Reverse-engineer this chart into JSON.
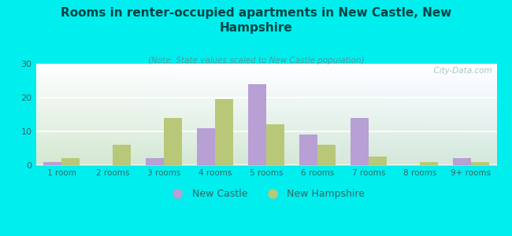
{
  "title": "Rooms in renter-occupied apartments in New Castle, New\nHampshire",
  "subtitle": "(Note: State values scaled to New Castle population)",
  "categories": [
    "1 room",
    "2 rooms",
    "3 rooms",
    "4 rooms",
    "5 rooms",
    "6 rooms",
    "7 rooms",
    "8 rooms",
    "9+ rooms"
  ],
  "new_castle": [
    1,
    0,
    2,
    11,
    24,
    9,
    14,
    0,
    2
  ],
  "new_hampshire": [
    2,
    6,
    14,
    19.5,
    12,
    6,
    2.5,
    1,
    1
  ],
  "color_new_castle": "#b89fd4",
  "color_new_hampshire": "#b8c878",
  "background_color": "#00eeee",
  "ylim": [
    0,
    30
  ],
  "yticks": [
    0,
    10,
    20,
    30
  ],
  "watermark": "  City-Data.com",
  "legend_nc": "New Castle",
  "legend_nh": "New Hampshire",
  "title_color": "#004444",
  "subtitle_color": "#559999",
  "tick_color": "#336666",
  "watermark_color": "#99bbbb"
}
